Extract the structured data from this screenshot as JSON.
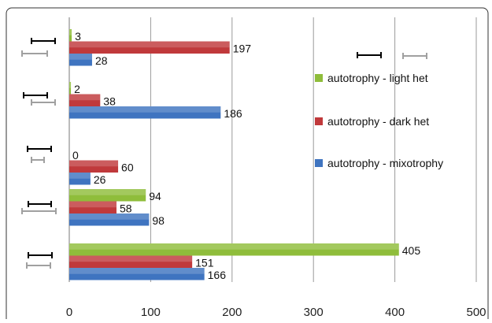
{
  "chart_data": {
    "type": "bar",
    "orientation": "horizontal",
    "groups": 5,
    "series": [
      {
        "name": "autotrophy - light het",
        "color": "#8fbd3b",
        "values": [
          3,
          2,
          0,
          94,
          405
        ]
      },
      {
        "name": "autotrophy - dark het",
        "color": "#c0393b",
        "values": [
          197,
          38,
          60,
          58,
          151
        ]
      },
      {
        "name": "autotrophy - mixotrophy",
        "color": "#3f74c0",
        "values": [
          28,
          186,
          26,
          98,
          166
        ]
      }
    ],
    "xlim": [
      0,
      500
    ],
    "xticks": [
      0,
      100,
      200,
      300,
      400,
      500
    ],
    "grid": true,
    "legend": "right",
    "reference_markers": {
      "black_color": "#000000",
      "gray_color": "#a0a0a0"
    }
  }
}
